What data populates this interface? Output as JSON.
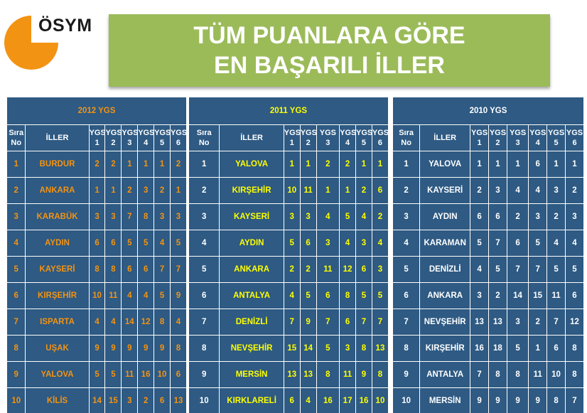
{
  "logo": {
    "text": "ÖSYM"
  },
  "banner": {
    "line1": "TÜM PUANLARA GÖRE",
    "line2": "EN BAŞARILI İLLER"
  },
  "columns": {
    "rank": [
      "Sıra",
      "No"
    ],
    "city": "İLLER",
    "scores": [
      [
        "YGS",
        "1"
      ],
      [
        "YGS",
        "2"
      ],
      [
        "YGS",
        "3"
      ],
      [
        "YGS",
        "4"
      ],
      [
        "YGS",
        "5"
      ],
      [
        "YGS",
        "6"
      ]
    ]
  },
  "colors": {
    "header_bg": "#2e5a83",
    "banner_bg": "#9bbb59",
    "orange": "#f39313",
    "yellow": "#ffff00",
    "white": "#ffffff"
  },
  "tables": [
    {
      "year": "2012 YGS",
      "rows": [
        {
          "rank": "1",
          "city": "BURDUR",
          "scores": [
            "2",
            "2",
            "1",
            "1",
            "1",
            "2"
          ]
        },
        {
          "rank": "2",
          "city": "ANKARA",
          "scores": [
            "1",
            "1",
            "2",
            "3",
            "2",
            "1"
          ]
        },
        {
          "rank": "3",
          "city": "KARABÜK",
          "scores": [
            "3",
            "3",
            "7",
            "8",
            "3",
            "3"
          ]
        },
        {
          "rank": "4",
          "city": "AYDIN",
          "scores": [
            "6",
            "6",
            "5",
            "5",
            "4",
            "5"
          ]
        },
        {
          "rank": "5",
          "city": "KAYSERİ",
          "scores": [
            "8",
            "8",
            "6",
            "6",
            "7",
            "7"
          ]
        },
        {
          "rank": "6",
          "city": "KIRŞEHİR",
          "scores": [
            "10",
            "11",
            "4",
            "4",
            "5",
            "9"
          ]
        },
        {
          "rank": "7",
          "city": "ISPARTA",
          "scores": [
            "4",
            "4",
            "14",
            "12",
            "8",
            "4"
          ]
        },
        {
          "rank": "8",
          "city": "UŞAK",
          "scores": [
            "9",
            "9",
            "9",
            "9",
            "9",
            "8"
          ]
        },
        {
          "rank": "9",
          "city": "YALOVA",
          "scores": [
            "5",
            "5",
            "11",
            "16",
            "10",
            "6"
          ]
        },
        {
          "rank": "10",
          "city": "KİLİS",
          "scores": [
            "14",
            "15",
            "3",
            "2",
            "6",
            "13"
          ]
        }
      ]
    },
    {
      "year": "2011 YGS",
      "rows": [
        {
          "rank": "1",
          "city": "YALOVA",
          "scores": [
            "1",
            "1",
            "2",
            "2",
            "1",
            "1"
          ]
        },
        {
          "rank": "2",
          "city": "KIRŞEHİR",
          "scores": [
            "10",
            "11",
            "1",
            "1",
            "2",
            "6"
          ]
        },
        {
          "rank": "3",
          "city": "KAYSERİ",
          "scores": [
            "3",
            "3",
            "4",
            "5",
            "4",
            "2"
          ]
        },
        {
          "rank": "4",
          "city": "AYDIN",
          "scores": [
            "5",
            "6",
            "3",
            "4",
            "3",
            "4"
          ]
        },
        {
          "rank": "5",
          "city": "ANKARA",
          "scores": [
            "2",
            "2",
            "11",
            "12",
            "6",
            "3"
          ]
        },
        {
          "rank": "6",
          "city": "ANTALYA",
          "scores": [
            "4",
            "5",
            "6",
            "8",
            "5",
            "5"
          ]
        },
        {
          "rank": "7",
          "city": "DENİZLİ",
          "scores": [
            "7",
            "9",
            "7",
            "6",
            "7",
            "7"
          ]
        },
        {
          "rank": "8",
          "city": "NEVŞEHİR",
          "scores": [
            "15",
            "14",
            "5",
            "3",
            "8",
            "13"
          ]
        },
        {
          "rank": "9",
          "city": "MERSİN",
          "scores": [
            "13",
            "13",
            "8",
            "11",
            "9",
            "8"
          ]
        },
        {
          "rank": "10",
          "city": "KIRKLARELİ",
          "scores": [
            "6",
            "4",
            "16",
            "17",
            "16",
            "10"
          ]
        }
      ]
    },
    {
      "year": "2010 YGS",
      "rows": [
        {
          "rank": "1",
          "city": "YALOVA",
          "scores": [
            "1",
            "1",
            "1",
            "6",
            "1",
            "1"
          ]
        },
        {
          "rank": "2",
          "city": "KAYSERİ",
          "scores": [
            "2",
            "3",
            "4",
            "4",
            "3",
            "2"
          ]
        },
        {
          "rank": "3",
          "city": "AYDIN",
          "scores": [
            "6",
            "6",
            "2",
            "3",
            "2",
            "3"
          ]
        },
        {
          "rank": "4",
          "city": "KARAMAN",
          "scores": [
            "5",
            "7",
            "6",
            "5",
            "4",
            "4"
          ]
        },
        {
          "rank": "5",
          "city": "DENİZLİ",
          "scores": [
            "4",
            "5",
            "7",
            "7",
            "5",
            "5"
          ]
        },
        {
          "rank": "6",
          "city": "ANKARA",
          "scores": [
            "3",
            "2",
            "14",
            "15",
            "11",
            "6"
          ]
        },
        {
          "rank": "7",
          "city": "NEVŞEHİR",
          "scores": [
            "13",
            "13",
            "3",
            "2",
            "7",
            "12"
          ]
        },
        {
          "rank": "8",
          "city": "KIRŞEHİR",
          "scores": [
            "16",
            "18",
            "5",
            "1",
            "6",
            "8"
          ]
        },
        {
          "rank": "9",
          "city": "ANTALYA",
          "scores": [
            "7",
            "8",
            "8",
            "11",
            "10",
            "8"
          ]
        },
        {
          "rank": "10",
          "city": "MERSİN",
          "scores": [
            "9",
            "9",
            "9",
            "9",
            "8",
            "7"
          ]
        }
      ]
    }
  ]
}
